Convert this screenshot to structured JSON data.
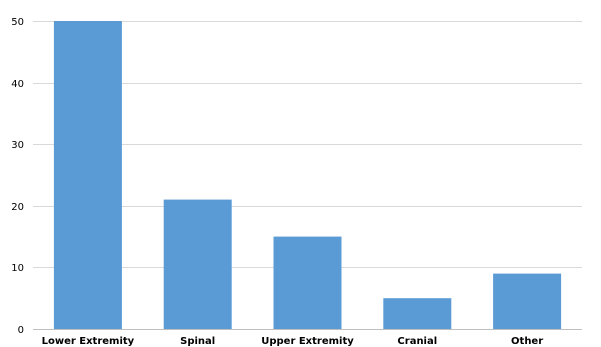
{
  "chart_data": {
    "type": "bar",
    "categories": [
      "Lower Extremity",
      "Spinal",
      "Upper Extremity",
      "Cranial",
      "Other"
    ],
    "series": [
      {
        "values": [
          50,
          21,
          15,
          5,
          9
        ],
        "color": "#5b9bd5"
      }
    ],
    "ylim": [
      0,
      50
    ],
    "yticks": [
      "0",
      "10",
      "20",
      "30",
      "40",
      "50"
    ],
    "title": "",
    "xlabel": "",
    "ylabel": "",
    "grid": true,
    "legend": "none"
  }
}
